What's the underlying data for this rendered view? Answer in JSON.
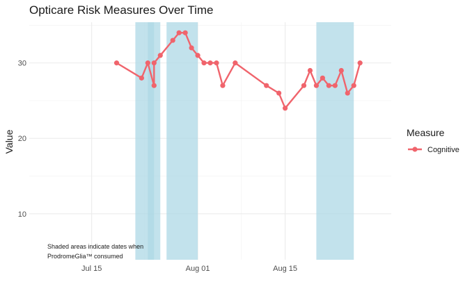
{
  "chart_data": {
    "type": "line",
    "title": "Opticare Risk Measures Over Time",
    "xlabel": "",
    "ylabel": "Value",
    "x_ticks": [
      {
        "date": "2024-07-15",
        "label": "Jul 15"
      },
      {
        "date": "2024-08-01",
        "label": "Aug 01"
      },
      {
        "date": "2024-08-15",
        "label": "Aug 15"
      }
    ],
    "y_ticks": [
      10,
      20,
      30
    ],
    "xlim": [
      "2024-07-05",
      "2024-09-01"
    ],
    "ylim": [
      3.9,
      35.4
    ],
    "grid": true,
    "legend": {
      "title": "Measure",
      "position": "right"
    },
    "series": [
      {
        "name": "Cognitive",
        "color": "#F0646C",
        "points": [
          {
            "x": "2024-07-19",
            "y": 30
          },
          {
            "x": "2024-07-23",
            "y": 28
          },
          {
            "x": "2024-07-24",
            "y": 30
          },
          {
            "x": "2024-07-25",
            "y": 27
          },
          {
            "x": "2024-07-25",
            "y": 30
          },
          {
            "x": "2024-07-26",
            "y": 31
          },
          {
            "x": "2024-07-28",
            "y": 33
          },
          {
            "x": "2024-07-29",
            "y": 34
          },
          {
            "x": "2024-07-30",
            "y": 34
          },
          {
            "x": "2024-07-31",
            "y": 32
          },
          {
            "x": "2024-08-01",
            "y": 31
          },
          {
            "x": "2024-08-02",
            "y": 30
          },
          {
            "x": "2024-08-03",
            "y": 30
          },
          {
            "x": "2024-08-04",
            "y": 30
          },
          {
            "x": "2024-08-05",
            "y": 27
          },
          {
            "x": "2024-08-07",
            "y": 30
          },
          {
            "x": "2024-08-12",
            "y": 27
          },
          {
            "x": "2024-08-14",
            "y": 26
          },
          {
            "x": "2024-08-15",
            "y": 24
          },
          {
            "x": "2024-08-18",
            "y": 27
          },
          {
            "x": "2024-08-19",
            "y": 29
          },
          {
            "x": "2024-08-20",
            "y": 27
          },
          {
            "x": "2024-08-21",
            "y": 28
          },
          {
            "x": "2024-08-22",
            "y": 27
          },
          {
            "x": "2024-08-23",
            "y": 27
          },
          {
            "x": "2024-08-24",
            "y": 29
          },
          {
            "x": "2024-08-25",
            "y": 26
          },
          {
            "x": "2024-08-26",
            "y": 27
          },
          {
            "x": "2024-08-27",
            "y": 30
          }
        ]
      }
    ],
    "shaded_periods": [
      {
        "start": "2024-07-22",
        "end": "2024-07-25"
      },
      {
        "start": "2024-07-24",
        "end": "2024-07-26"
      },
      {
        "start": "2024-07-27",
        "end": "2024-08-01"
      },
      {
        "start": "2024-08-20",
        "end": "2024-08-26"
      }
    ],
    "shade_color": "#ADD8E6",
    "annotation": [
      "Shaded areas indicate dates when",
      "ProdromeGlia™ consumed"
    ]
  }
}
